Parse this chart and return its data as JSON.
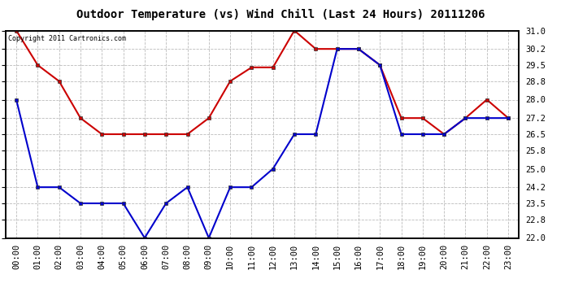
{
  "title": "Outdoor Temperature (vs) Wind Chill (Last 24 Hours) 20111206",
  "copyright_text": "Copyright 2011 Cartronics.com",
  "x_labels": [
    "00:00",
    "01:00",
    "02:00",
    "03:00",
    "04:00",
    "05:00",
    "06:00",
    "07:00",
    "08:00",
    "09:00",
    "10:00",
    "11:00",
    "12:00",
    "13:00",
    "14:00",
    "15:00",
    "16:00",
    "17:00",
    "18:00",
    "19:00",
    "20:00",
    "21:00",
    "22:00",
    "23:00"
  ],
  "red_data": [
    31.0,
    29.5,
    28.8,
    27.2,
    26.5,
    26.5,
    26.5,
    26.5,
    26.5,
    27.2,
    28.8,
    29.4,
    29.4,
    31.0,
    30.2,
    30.2,
    30.2,
    29.5,
    27.2,
    27.2,
    26.5,
    27.2,
    28.0,
    27.2
  ],
  "blue_data": [
    28.0,
    24.2,
    24.2,
    23.5,
    23.5,
    23.5,
    22.0,
    23.5,
    24.2,
    22.0,
    24.2,
    24.2,
    25.0,
    26.5,
    26.5,
    30.2,
    30.2,
    29.5,
    26.5,
    26.5,
    26.5,
    27.2,
    27.2,
    27.2
  ],
  "y_ticks": [
    22.0,
    22.8,
    23.5,
    24.2,
    25.0,
    25.8,
    26.5,
    27.2,
    28.0,
    28.8,
    29.5,
    30.2,
    31.0
  ],
  "y_min": 22.0,
  "y_max": 31.0,
  "red_color": "#cc0000",
  "blue_color": "#0000cc",
  "background_color": "#ffffff",
  "grid_color": "#bbbbbb",
  "title_fontsize": 10,
  "tick_fontsize": 7.5,
  "marker": "s",
  "marker_size": 3.5,
  "line_width": 1.5
}
